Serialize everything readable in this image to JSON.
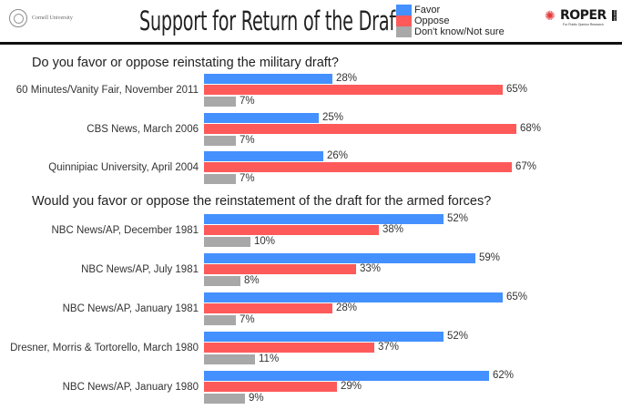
{
  "header": {
    "institution": "Cornell University",
    "title": "Support for Return of the Draft",
    "logo": {
      "name": "ROPER",
      "side_text": "CENTER",
      "subtitle": "For Public Opinion Research"
    }
  },
  "colors": {
    "favor": "#4490ff",
    "oppose": "#ff5a5a",
    "unsure": "#a8a8a8"
  },
  "chart_data": {
    "type": "bar",
    "orientation": "horizontal",
    "title": "Support for Return of the Draft",
    "legend": {
      "placement": "top",
      "entries": [
        "Favor",
        "Oppose",
        "Don't know/Not sure"
      ]
    },
    "series_names": [
      "Favor",
      "Oppose",
      "Don't know/Not sure"
    ],
    "value_suffix": "%",
    "xlim": [
      0,
      100
    ],
    "sections": [
      {
        "heading": "Do you favor or oppose reinstating the military draft?",
        "groups": [
          {
            "label": "60 Minutes/Vanity Fair, November 2011",
            "values": [
              28,
              65,
              7
            ]
          },
          {
            "label": "CBS News, March 2006",
            "values": [
              25,
              68,
              7
            ]
          },
          {
            "label": "Quinnipiac University, April 2004",
            "values": [
              26,
              67,
              7
            ]
          }
        ]
      },
      {
        "heading": "Would you favor or oppose the reinstatement of the draft for the armed forces?",
        "groups": [
          {
            "label": "NBC News/AP, December 1981",
            "values": [
              52,
              38,
              10
            ]
          },
          {
            "label": "NBC News/AP, July 1981",
            "values": [
              59,
              33,
              8
            ]
          },
          {
            "label": "NBC News/AP, January 1981",
            "values": [
              65,
              28,
              7
            ]
          },
          {
            "label": "Dresner, Morris & Tortorello, March 1980",
            "values": [
              52,
              37,
              11
            ]
          },
          {
            "label": "NBC News/AP, January 1980",
            "values": [
              62,
              29,
              9
            ]
          }
        ]
      }
    ]
  }
}
